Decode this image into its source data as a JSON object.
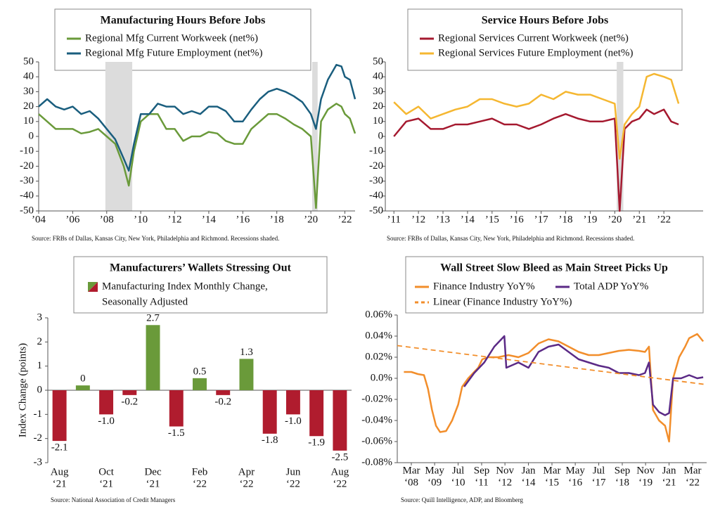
{
  "chart_data": [
    {
      "type": "line",
      "title": "Manufacturing Hours Before Jobs",
      "source": "Source:  FRBs of Dallas, Kansas City, New York, Philadelphia and Richmond. Recessions shaded.",
      "x": [
        2004,
        2004.5,
        2005,
        2005.5,
        2006,
        2006.5,
        2007,
        2007.5,
        2008,
        2008.5,
        2009,
        2009.3,
        2009.6,
        2010,
        2010.5,
        2011,
        2011.5,
        2012,
        2012.5,
        2013,
        2013.5,
        2014,
        2014.5,
        2015,
        2015.5,
        2016,
        2016.5,
        2017,
        2017.5,
        2018,
        2018.5,
        2019,
        2019.5,
        2020,
        2020.3,
        2020.6,
        2021,
        2021.5,
        2021.8,
        2022,
        2022.3,
        2022.6
      ],
      "series": [
        {
          "name": "Regional Mfg Current Workweek (net%)",
          "color": "#6a9a3a",
          "values": [
            15,
            10,
            5,
            5,
            5,
            2,
            3,
            5,
            0,
            -5,
            -20,
            -33,
            -10,
            10,
            15,
            15,
            5,
            5,
            -3,
            0,
            0,
            3,
            2,
            -3,
            -5,
            -5,
            5,
            10,
            15,
            15,
            12,
            8,
            5,
            0,
            -48,
            10,
            18,
            22,
            20,
            15,
            12,
            2
          ]
        },
        {
          "name": "Regional Mfg Future Employment (net%)",
          "color": "#1a5e7e",
          "values": [
            20,
            25,
            20,
            18,
            20,
            15,
            17,
            12,
            5,
            -2,
            -15,
            -23,
            -5,
            15,
            15,
            22,
            20,
            20,
            15,
            17,
            15,
            20,
            20,
            17,
            10,
            10,
            18,
            25,
            30,
            32,
            30,
            27,
            23,
            15,
            5,
            25,
            38,
            48,
            47,
            40,
            38,
            25
          ]
        }
      ],
      "recessions": [
        [
          2007.92,
          2009.5
        ],
        [
          2020.08,
          2020.4
        ]
      ],
      "xlim": [
        2004,
        2022.6
      ],
      "xticks": [
        {
          "value": 2004,
          "label": "’04"
        },
        {
          "value": 2006,
          "label": "’06"
        },
        {
          "value": 2008,
          "label": "’08"
        },
        {
          "value": 2010,
          "label": "’10"
        },
        {
          "value": 2012,
          "label": "’12"
        },
        {
          "value": 2014,
          "label": "’14"
        },
        {
          "value": 2016,
          "label": "’16"
        },
        {
          "value": 2018,
          "label": "’18"
        },
        {
          "value": 2020,
          "label": "’20"
        },
        {
          "value": 2022,
          "label": "’22"
        }
      ],
      "ylim": [
        -50,
        50
      ],
      "yticks": [
        -50,
        -40,
        -30,
        -20,
        -10,
        0,
        10,
        20,
        30,
        40,
        50
      ]
    },
    {
      "type": "line",
      "title": "Service Hours Before Jobs",
      "source": "Source:  FRBs of Dallas, Kansas City, New York, Philadelphia and Richmond. Recessions shaded.",
      "x": [
        2011,
        2011.5,
        2012,
        2012.5,
        2013,
        2013.5,
        2014,
        2014.5,
        2015,
        2015.5,
        2016,
        2016.5,
        2017,
        2017.5,
        2018,
        2018.5,
        2019,
        2019.5,
        2020,
        2020.2,
        2020.4,
        2020.7,
        2021,
        2021.3,
        2021.6,
        2022,
        2022.3,
        2022.6
      ],
      "series": [
        {
          "name": "Regional Services Current Workweek (net%)",
          "color": "#a5192f",
          "values": [
            0,
            10,
            12,
            5,
            5,
            8,
            8,
            10,
            12,
            8,
            8,
            5,
            8,
            12,
            15,
            12,
            10,
            10,
            12,
            -50,
            5,
            10,
            12,
            18,
            15,
            18,
            10,
            8
          ]
        },
        {
          "name": "Regional Services Future Employment (net%)",
          "color": "#f5b731",
          "values": [
            23,
            15,
            20,
            12,
            15,
            18,
            20,
            25,
            25,
            22,
            20,
            22,
            28,
            25,
            30,
            28,
            28,
            25,
            22,
            -15,
            8,
            15,
            20,
            40,
            42,
            40,
            38,
            22
          ]
        }
      ],
      "recessions": [
        [
          2020.08,
          2020.35
        ]
      ],
      "xlim": [
        2010.65,
        2023.6
      ],
      "xticks": [
        {
          "value": 2011,
          "label": "’11"
        },
        {
          "value": 2012,
          "label": "’12"
        },
        {
          "value": 2013,
          "label": "’13"
        },
        {
          "value": 2014,
          "label": "’14"
        },
        {
          "value": 2015,
          "label": "’15"
        },
        {
          "value": 2016,
          "label": "’16"
        },
        {
          "value": 2017,
          "label": "’17"
        },
        {
          "value": 2018,
          "label": "’18"
        },
        {
          "value": 2019,
          "label": "’19"
        },
        {
          "value": 2020,
          "label": "’20"
        },
        {
          "value": 2021,
          "label": "’21"
        },
        {
          "value": 2022,
          "label": "’22"
        }
      ],
      "ylim": [
        -50,
        50
      ],
      "yticks": [
        -50,
        -40,
        -30,
        -20,
        -10,
        0,
        10,
        20,
        30,
        40,
        50
      ]
    },
    {
      "type": "bar",
      "title": "Manufacturers’ Wallets Stressing Out",
      "legend": [
        "Manufacturing Index Monthly Change,",
        "Seasonally Adjusted"
      ],
      "source": "Source:  National Association of Credit Managers",
      "ylabel": "Index Change (points)",
      "categories": [
        [
          "Aug",
          "‘21"
        ],
        null,
        [
          "Oct",
          "‘21"
        ],
        null,
        [
          "Dec",
          "‘21"
        ],
        null,
        [
          "Feb",
          "‘22"
        ],
        null,
        [
          "Apr",
          "‘22"
        ],
        null,
        [
          "Jun",
          "‘22"
        ],
        null,
        [
          "Aug",
          "‘22"
        ]
      ],
      "values": [
        -2.1,
        0.2,
        -1.0,
        -0.2,
        2.7,
        -1.5,
        0.5,
        -0.2,
        1.3,
        -1.8,
        -1.0,
        -1.9,
        -2.5
      ],
      "value_labels": [
        "-2.1",
        "0",
        "-1.0",
        "-0.2",
        "2.7",
        "-1.5",
        "0.5",
        "-0.2",
        "1.3",
        "-1.8",
        "-1.0",
        "-1.9",
        "-2.5"
      ],
      "positive_color": "#6a9a3a",
      "negative_color": "#b01c2e",
      "ylim": [
        -3,
        3
      ],
      "yticks": [
        -3,
        -2,
        -1,
        0,
        1,
        2,
        3
      ]
    },
    {
      "type": "line",
      "title": "Wall Street Slow Bleed as Main Street Picks Up",
      "source": "Source:  Quill Intelligence, ADP, and  Bloomberg",
      "series": [
        {
          "name": "Finance Industry YoY%",
          "color": "#f28e2b",
          "x": [
            2007.8,
            2008.17,
            2008.5,
            2008.8,
            2009.0,
            2009.2,
            2009.4,
            2009.6,
            2009.9,
            2010.2,
            2010.5,
            2010.7,
            2011.0,
            2011.5,
            2011.7,
            2012.0,
            2012.5,
            2013.0,
            2013.5,
            2014.0,
            2014.5,
            2015.0,
            2015.5,
            2016.0,
            2016.5,
            2017.0,
            2017.5,
            2018.0,
            2018.5,
            2019.0,
            2019.5,
            2019.8,
            2020.0,
            2020.2,
            2020.5,
            2020.8,
            2021.0,
            2021.2,
            2021.5,
            2021.8,
            2022.0,
            2022.4,
            2022.7
          ],
          "values": [
            0.006,
            0.006,
            0.004,
            0.003,
            -0.01,
            -0.03,
            -0.045,
            -0.051,
            -0.05,
            -0.04,
            -0.025,
            -0.008,
            0.0,
            0.01,
            0.018,
            0.02,
            0.02,
            0.022,
            0.02,
            0.024,
            0.033,
            0.037,
            0.035,
            0.03,
            0.025,
            0.022,
            0.022,
            0.024,
            0.026,
            0.027,
            0.026,
            0.025,
            0.03,
            -0.03,
            -0.04,
            -0.045,
            -0.06,
            0.0,
            0.02,
            0.03,
            0.038,
            0.042,
            0.035
          ]
        },
        {
          "name": "Total ADP YoY%",
          "color": "#5b2a86",
          "x": [
            2010.8,
            2011.3,
            2011.8,
            2012.3,
            2012.8,
            2012.9,
            2013.5,
            2014.0,
            2014.5,
            2015.0,
            2015.5,
            2016.0,
            2016.5,
            2017.0,
            2017.5,
            2018.0,
            2018.5,
            2019.0,
            2019.5,
            2019.8,
            2020.0,
            2020.2,
            2020.5,
            2020.8,
            2021.0,
            2021.2,
            2021.6,
            2022.0,
            2022.4,
            2022.7
          ],
          "values": [
            -0.008,
            0.005,
            0.015,
            0.03,
            0.04,
            0.01,
            0.015,
            0.01,
            0.025,
            0.03,
            0.032,
            0.025,
            0.018,
            0.015,
            0.012,
            0.01,
            0.005,
            0.005,
            0.003,
            0.005,
            0.015,
            -0.025,
            -0.032,
            -0.035,
            -0.033,
            0.0,
            0.0,
            0.003,
            0.0,
            0.001
          ]
        },
        {
          "name": "Linear (Finance Industry YoY%)",
          "color": "#f28e2b",
          "dash": true,
          "x": [
            2007.47,
            2022.87
          ],
          "values": [
            0.031,
            -0.006
          ]
        }
      ],
      "xlim": [
        2007.47,
        2022.87
      ],
      "xticks": [
        {
          "value": 2008.17,
          "label": [
            "Mar",
            "‘08"
          ]
        },
        {
          "value": 2009.33,
          "label": [
            "May",
            "‘09"
          ]
        },
        {
          "value": 2010.5,
          "label": [
            "Jul",
            "‘10"
          ]
        },
        {
          "value": 2011.67,
          "label": [
            "Sep",
            "‘11"
          ]
        },
        {
          "value": 2012.83,
          "label": [
            "Nov",
            "‘12"
          ]
        },
        {
          "value": 2014.0,
          "label": [
            "Jan",
            "‘14"
          ]
        },
        {
          "value": 2015.17,
          "label": [
            "Mar",
            "‘15"
          ]
        },
        {
          "value": 2016.33,
          "label": [
            "May",
            "‘16"
          ]
        },
        {
          "value": 2017.5,
          "label": [
            "Jul",
            "‘17"
          ]
        },
        {
          "value": 2018.67,
          "label": [
            "Sep",
            "‘18"
          ]
        },
        {
          "value": 2019.83,
          "label": [
            "Nov",
            "‘19"
          ]
        },
        {
          "value": 2021.0,
          "label": [
            "Jan",
            "‘21"
          ]
        },
        {
          "value": 2022.17,
          "label": [
            "Mar",
            "‘22"
          ]
        }
      ],
      "ylim": [
        -0.08,
        0.06
      ],
      "yticks": [
        {
          "value": -0.08,
          "label": "-0.08%"
        },
        {
          "value": -0.06,
          "label": "-0.06%"
        },
        {
          "value": -0.04,
          "label": "-0.04%"
        },
        {
          "value": -0.02,
          "label": "-0.02%"
        },
        {
          "value": 0,
          "label": "0.0%"
        },
        {
          "value": 0.02,
          "label": "0.02%"
        },
        {
          "value": 0.04,
          "label": "0.04%"
        },
        {
          "value": 0.06,
          "label": "0.06%"
        }
      ]
    }
  ]
}
